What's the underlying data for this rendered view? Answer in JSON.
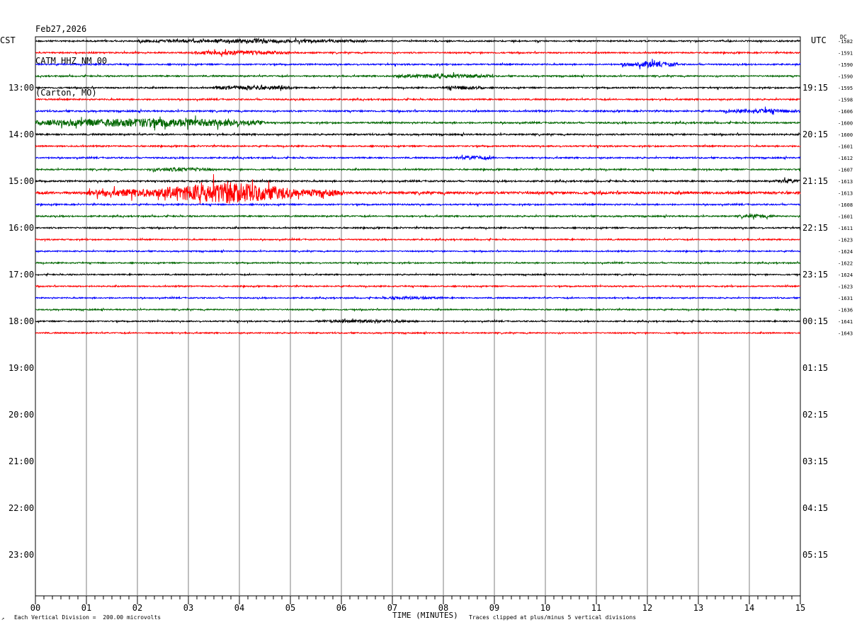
{
  "header": {
    "date": "Feb27,2026",
    "station": "CATM HHZ NM 00",
    "location": "(Carton, MO)"
  },
  "left_zone": "CST",
  "right_zone": "UTC",
  "dc_label": "DC",
  "footer": {
    "vertical_division": "Each Vertical Division =  200.00 microvolts",
    "x_axis_title": "TIME (MINUTES)",
    "clip_note": "Traces clipped at plus/minus 5 vertical divisions"
  },
  "colors": {
    "cycle": [
      "#000000",
      "#ff0000",
      "#0000ff",
      "#006600"
    ],
    "grid": "#7f7f7f"
  },
  "chart_data": {
    "type": "line",
    "title": "CATM HHZ NM 00",
    "xlabel": "TIME (MINUTES)",
    "xlim": [
      0,
      15
    ],
    "x_ticks": [
      "00",
      "01",
      "02",
      "03",
      "04",
      "05",
      "06",
      "07",
      "08",
      "09",
      "10",
      "11",
      "12",
      "13",
      "14",
      "15"
    ],
    "hour_labels_left": [
      "13:00",
      "14:00",
      "15:00",
      "16:00",
      "17:00",
      "18:00",
      "19:00",
      "20:00",
      "21:00",
      "22:00",
      "23:00"
    ],
    "hour_labels_right": [
      "19:15",
      "20:15",
      "21:15",
      "22:15",
      "23:15",
      "00:15",
      "01:15",
      "02:15",
      "03:15",
      "04:15",
      "05:15"
    ],
    "trace_minutes_per_line": 15,
    "traces": [
      {
        "dc": -1582,
        "base_amp": 0.9,
        "bursts": [
          [
            2.0,
            6.5,
            1.6
          ]
        ]
      },
      {
        "dc": -1591,
        "base_amp": 0.9,
        "bursts": [
          [
            3.0,
            5.0,
            2.2
          ]
        ]
      },
      {
        "dc": -1590,
        "base_amp": 0.9,
        "bursts": [
          [
            11.5,
            12.6,
            3.0
          ]
        ]
      },
      {
        "dc": -1590,
        "base_amp": 0.9,
        "bursts": [
          [
            7.0,
            9.0,
            2.2
          ]
        ]
      },
      {
        "dc": -1595,
        "base_amp": 0.9,
        "bursts": [
          [
            3.5,
            5.0,
            2.5
          ],
          [
            8.0,
            8.8,
            2.0
          ]
        ]
      },
      {
        "dc": -1598,
        "base_amp": 0.9,
        "bursts": []
      },
      {
        "dc": -1606,
        "base_amp": 1.0,
        "bursts": [
          [
            13.5,
            15.0,
            2.0
          ]
        ]
      },
      {
        "dc": -1600,
        "base_amp": 1.0,
        "bursts": [
          [
            0.0,
            4.5,
            5.5
          ]
        ]
      },
      {
        "dc": -1600,
        "base_amp": 1.0,
        "bursts": []
      },
      {
        "dc": -1601,
        "base_amp": 0.9,
        "bursts": []
      },
      {
        "dc": -1612,
        "base_amp": 0.9,
        "bursts": [
          [
            8.2,
            9.0,
            2.0
          ]
        ]
      },
      {
        "dc": -1607,
        "base_amp": 0.9,
        "bursts": [
          [
            2.2,
            3.5,
            2.0
          ]
        ]
      },
      {
        "dc": -1613,
        "base_amp": 1.0,
        "bursts": [
          [
            14.5,
            15.0,
            2.0
          ]
        ]
      },
      {
        "dc": -1613,
        "base_amp": 1.6,
        "bursts": [
          [
            1.0,
            6.0,
            6.0
          ],
          [
            2.5,
            5.0,
            14.0
          ]
        ]
      },
      {
        "dc": -1608,
        "base_amp": 0.9,
        "bursts": []
      },
      {
        "dc": -1601,
        "base_amp": 0.9,
        "bursts": [
          [
            13.8,
            14.5,
            1.8
          ]
        ]
      },
      {
        "dc": -1611,
        "base_amp": 0.9,
        "bursts": []
      },
      {
        "dc": -1623,
        "base_amp": 0.8,
        "bursts": []
      },
      {
        "dc": -1624,
        "base_amp": 0.8,
        "bursts": []
      },
      {
        "dc": -1622,
        "base_amp": 0.8,
        "bursts": []
      },
      {
        "dc": -1624,
        "base_amp": 0.8,
        "bursts": []
      },
      {
        "dc": -1623,
        "base_amp": 0.8,
        "bursts": []
      },
      {
        "dc": -1631,
        "base_amp": 0.8,
        "bursts": [
          [
            6.8,
            8.0,
            1.4
          ]
        ]
      },
      {
        "dc": -1636,
        "base_amp": 0.8,
        "bursts": []
      },
      {
        "dc": -1641,
        "base_amp": 0.8,
        "bursts": [
          [
            5.5,
            7.5,
            1.4
          ]
        ]
      },
      {
        "dc": -1643,
        "base_amp": 0.8,
        "bursts": []
      }
    ]
  }
}
